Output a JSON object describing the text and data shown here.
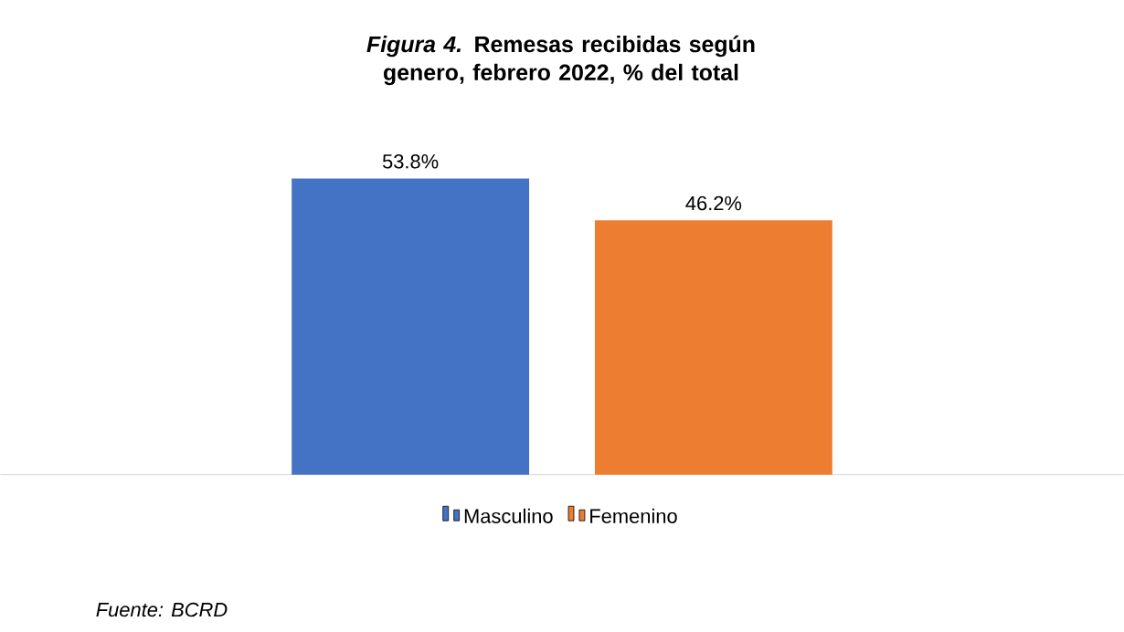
{
  "chart_data": {
    "type": "bar",
    "title": "*Figura 4.* Remesas recibidas según genero, febrero 2022, % del total",
    "categories": [
      null
    ],
    "series": [
      {
        "name": "Masculino",
        "color": "#4472c4",
        "values": [
          53.8
        ],
        "value_labels": [
          "53.8%"
        ]
      },
      {
        "name": "Femenino",
        "color": "#ed7d31",
        "values": [
          46.2
        ],
        "value_labels": [
          "46.2%"
        ]
      }
    ],
    "legend": "bottom",
    "annotations": [
      "Fuente: BCRD"
    ]
  }
}
